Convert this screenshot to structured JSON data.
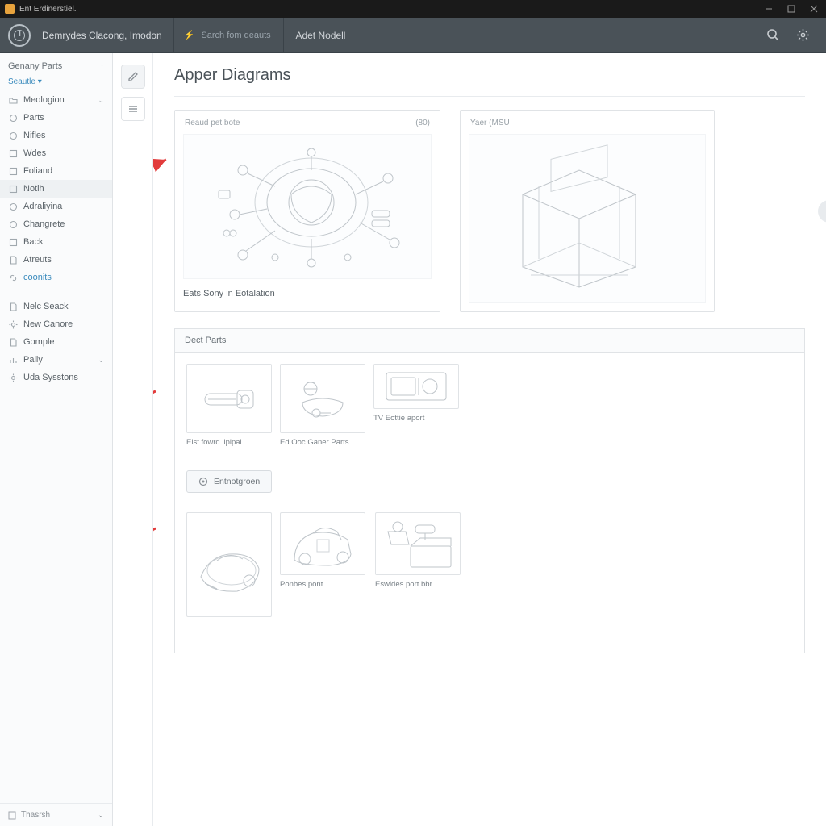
{
  "window": {
    "title": "Ent Erdinerstiel."
  },
  "header": {
    "product": "Demrydes Clacong, Imodon",
    "search_placeholder": "Sarch fom deauts",
    "context": "Adet Nodell"
  },
  "sidebar": {
    "title": "Genany Parts",
    "filter": "Seautle ▾",
    "footer": "Thasrsh",
    "groups": [
      {
        "items": [
          {
            "icon": "folder",
            "label": "Meologion",
            "expandable": true
          },
          {
            "icon": "circle",
            "label": "Parts"
          },
          {
            "icon": "circle",
            "label": "Nifles"
          },
          {
            "icon": "square",
            "label": "Wdes"
          },
          {
            "icon": "square",
            "label": "Foliand"
          },
          {
            "icon": "square",
            "label": "Notlh",
            "selected": true
          },
          {
            "icon": "circle",
            "label": "Adraliyina"
          },
          {
            "icon": "circle",
            "label": "Changrete"
          },
          {
            "icon": "square",
            "label": "Back"
          },
          {
            "icon": "doc",
            "label": "Atreuts"
          },
          {
            "icon": "link",
            "label": "coonits",
            "muted": true
          }
        ]
      },
      {
        "items": [
          {
            "icon": "doc",
            "label": "Nelc Seack"
          },
          {
            "icon": "gear",
            "label": "New Canore"
          },
          {
            "icon": "doc",
            "label": "Gomple"
          },
          {
            "icon": "chart",
            "label": "Pally",
            "expandable": true
          },
          {
            "icon": "gear",
            "label": "Uda Sysstons"
          }
        ]
      }
    ]
  },
  "content": {
    "title": "Apper Diagrams",
    "diagrams": [
      {
        "header_left": "Reaud pet bote",
        "header_right": "(80)",
        "caption": "Eats Sony in Eotalation"
      },
      {
        "header_left": "Yaer (MSU",
        "header_right": ""
      }
    ],
    "parts_section_title": "Dect Parts",
    "action_button": "Entnotgroen",
    "parts_row1": [
      {
        "label": "Eist fowrd llpipal"
      },
      {
        "label": "Ed Ooc Ganer Parts"
      },
      {
        "label": "TV Eottie aport"
      }
    ],
    "parts_row2": [
      {
        "label": ""
      },
      {
        "label": "Ponbes pont"
      },
      {
        "label": "Eswides port bbr"
      }
    ]
  },
  "colors": {
    "titlebar": "#1a1a1a",
    "header": "#4a5258",
    "accent": "#3b8bbd",
    "arrow": "#e23b3b",
    "stroke": "#bfc5ca",
    "border": "#e0e3e6"
  }
}
